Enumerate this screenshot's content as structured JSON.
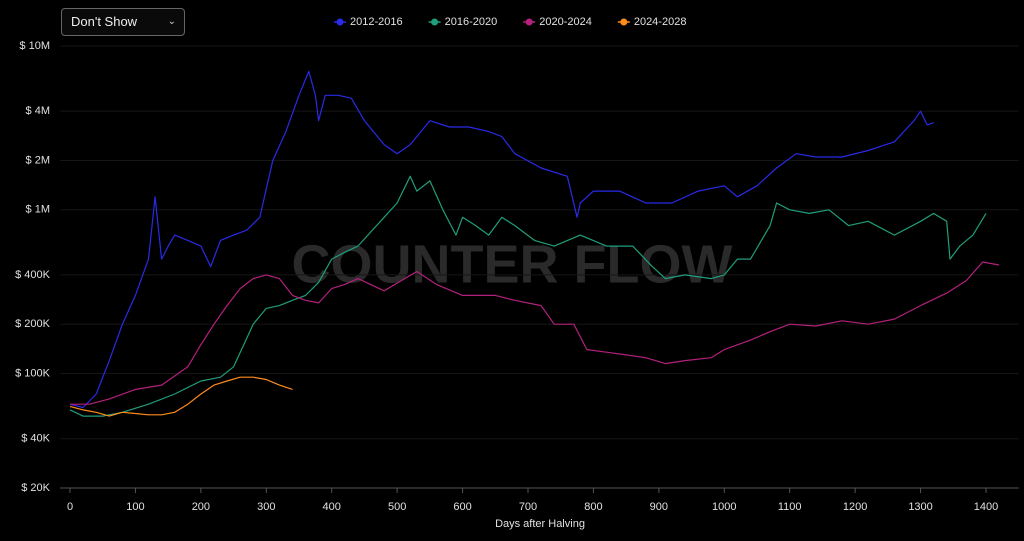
{
  "dropdown": "Don't Show",
  "chart_data": {
    "type": "line",
    "watermark": "COUNTER FLOW",
    "x_label": "Days after Halving",
    "log_y": true,
    "grid": true,
    "xlim": [
      -15,
      1450
    ],
    "ylim": [
      20000,
      10000000
    ],
    "xticks": [
      0,
      100,
      200,
      300,
      400,
      500,
      600,
      700,
      800,
      900,
      1000,
      1100,
      1200,
      1300,
      1400
    ],
    "yticks": [
      {
        "value": 20000,
        "label": "$ 20K"
      },
      {
        "value": 40000,
        "label": "$ 40K"
      },
      {
        "value": 100000,
        "label": "$ 100K"
      },
      {
        "value": 200000,
        "label": "$ 200K"
      },
      {
        "value": 400000,
        "label": "$ 400K"
      },
      {
        "value": 1000000,
        "label": "$ 1M"
      },
      {
        "value": 2000000,
        "label": "$ 2M"
      },
      {
        "value": 4000000,
        "label": "$ 4M"
      },
      {
        "value": 10000000,
        "label": "$ 10M"
      }
    ],
    "series": [
      {
        "name": "2012-2016",
        "color": "#2a2ae8",
        "x": [
          0,
          20,
          40,
          60,
          80,
          100,
          120,
          130,
          140,
          150,
          160,
          180,
          200,
          215,
          230,
          250,
          270,
          290,
          310,
          330,
          350,
          365,
          375,
          380,
          390,
          410,
          430,
          450,
          480,
          500,
          520,
          550,
          580,
          610,
          640,
          660,
          680,
          720,
          760,
          775,
          780,
          800,
          840,
          880,
          920,
          960,
          1000,
          1020,
          1050,
          1080,
          1110,
          1140,
          1180,
          1220,
          1260,
          1290,
          1300,
          1310,
          1320
        ],
        "values": [
          65000,
          62000,
          75000,
          120000,
          200000,
          300000,
          500000,
          1200000,
          500000,
          600000,
          700000,
          650000,
          600000,
          450000,
          650000,
          700000,
          750000,
          900000,
          2000000,
          3000000,
          5000000,
          7000000,
          5000000,
          3500000,
          5000000,
          5000000,
          4800000,
          3500000,
          2500000,
          2200000,
          2500000,
          3500000,
          3200000,
          3200000,
          3000000,
          2800000,
          2200000,
          1800000,
          1600000,
          900000,
          1100000,
          1300000,
          1300000,
          1100000,
          1100000,
          1300000,
          1400000,
          1200000,
          1400000,
          1800000,
          2200000,
          2100000,
          2100000,
          2300000,
          2600000,
          3500000,
          4000000,
          3300000,
          3400000
        ]
      },
      {
        "name": "2016-2020",
        "color": "#1f9e7c",
        "x": [
          0,
          20,
          50,
          80,
          120,
          160,
          200,
          230,
          250,
          280,
          300,
          320,
          340,
          360,
          380,
          400,
          420,
          440,
          480,
          500,
          520,
          530,
          550,
          570,
          590,
          600,
          620,
          640,
          660,
          680,
          710,
          740,
          780,
          820,
          860,
          890,
          910,
          940,
          980,
          1000,
          1020,
          1040,
          1070,
          1080,
          1100,
          1130,
          1160,
          1190,
          1220,
          1260,
          1300,
          1320,
          1340,
          1345,
          1360,
          1380,
          1400
        ],
        "values": [
          60000,
          55000,
          55000,
          58000,
          65000,
          75000,
          90000,
          95000,
          110000,
          200000,
          250000,
          260000,
          280000,
          300000,
          360000,
          500000,
          550000,
          600000,
          900000,
          1100000,
          1600000,
          1300000,
          1500000,
          1000000,
          700000,
          900000,
          800000,
          700000,
          900000,
          800000,
          650000,
          600000,
          700000,
          600000,
          600000,
          450000,
          380000,
          400000,
          380000,
          400000,
          500000,
          500000,
          800000,
          1100000,
          1000000,
          950000,
          1000000,
          800000,
          850000,
          700000,
          850000,
          950000,
          850000,
          500000,
          600000,
          700000,
          950000
        ]
      },
      {
        "name": "2020-2024",
        "color": "#b3217c",
        "x": [
          0,
          30,
          60,
          100,
          140,
          180,
          200,
          220,
          240,
          260,
          280,
          300,
          320,
          340,
          360,
          380,
          400,
          420,
          440,
          480,
          530,
          560,
          600,
          650,
          680,
          720,
          740,
          770,
          790,
          820,
          850,
          880,
          910,
          940,
          980,
          1000,
          1040,
          1070,
          1100,
          1140,
          1180,
          1220,
          1260,
          1300,
          1340,
          1370,
          1395,
          1420
        ],
        "values": [
          65000,
          65000,
          70000,
          80000,
          85000,
          110000,
          150000,
          200000,
          260000,
          330000,
          380000,
          400000,
          380000,
          300000,
          280000,
          270000,
          330000,
          350000,
          380000,
          320000,
          420000,
          350000,
          300000,
          300000,
          280000,
          260000,
          200000,
          200000,
          140000,
          135000,
          130000,
          125000,
          115000,
          120000,
          125000,
          140000,
          160000,
          180000,
          200000,
          195000,
          210000,
          200000,
          215000,
          260000,
          310000,
          370000,
          480000,
          460000
        ]
      },
      {
        "name": "2024-2028",
        "color": "#ff8c1a",
        "x": [
          0,
          20,
          40,
          60,
          80,
          100,
          120,
          140,
          160,
          180,
          200,
          220,
          240,
          260,
          280,
          300,
          320,
          340
        ],
        "values": [
          63000,
          60000,
          58000,
          55000,
          58000,
          57000,
          56000,
          56000,
          58000,
          65000,
          75000,
          85000,
          90000,
          95000,
          95000,
          92000,
          85000,
          80000
        ]
      }
    ]
  }
}
